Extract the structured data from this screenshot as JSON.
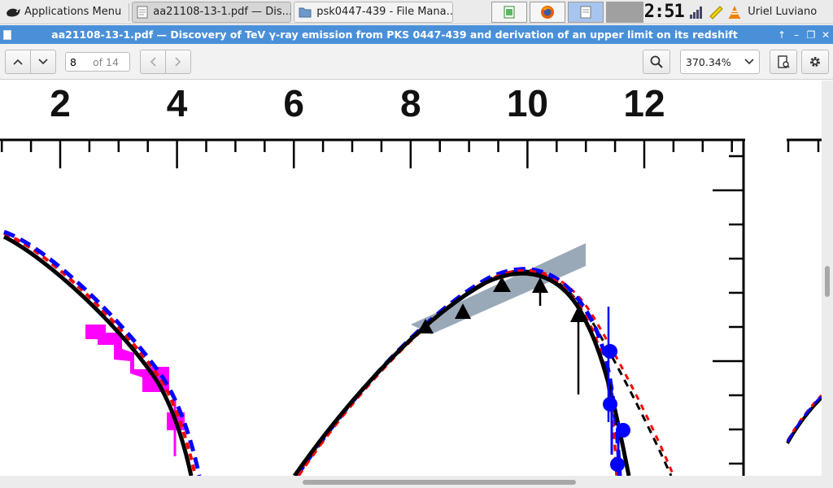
{
  "panel": {
    "app_menu_label": "Applications Menu",
    "tasks": [
      {
        "label": "aa21108-13-1.pdf — Dis...",
        "icon": "document-icon",
        "active": true
      },
      {
        "label": "psk0447-439 - File Mana...",
        "icon": "folder-icon",
        "active": false
      }
    ],
    "clock": "2:51",
    "user": "Uriel Luviano"
  },
  "window": {
    "title": "aa21108-13-1.pdf — Discovery of TeV γ-ray emission from PKS 0447-439 and derivation of an upper limit on its redshift"
  },
  "toolbar": {
    "page_current": "8",
    "page_total": "of 14",
    "zoom": "370.34%"
  },
  "chart_data": {
    "type": "line",
    "title": "",
    "xlabel": "",
    "ylabel": "",
    "x_tick_labels": [
      "2",
      "4",
      "6",
      "8",
      "10",
      "12"
    ],
    "xlim": [
      1,
      13.5
    ],
    "series": [
      {
        "name": "model-solid-black",
        "style": "solid",
        "color": "#000000"
      },
      {
        "name": "model-dashed-blue",
        "style": "dashed",
        "color": "#0000ff"
      },
      {
        "name": "model-dashed-red",
        "style": "dashed",
        "color": "#ff0000"
      },
      {
        "name": "model-dashed-black",
        "style": "dashed",
        "color": "#000000"
      }
    ],
    "markers": [
      {
        "name": "fermi-upper-triangles",
        "shape": "triangle",
        "color": "#000000",
        "count": 5
      },
      {
        "name": "hess-points",
        "shape": "circle",
        "color": "#0000ff",
        "count": 4
      },
      {
        "name": "optical-data",
        "shape": "square",
        "color": "#ff00ff"
      }
    ],
    "bowtie_color": "#9aa9b8"
  }
}
